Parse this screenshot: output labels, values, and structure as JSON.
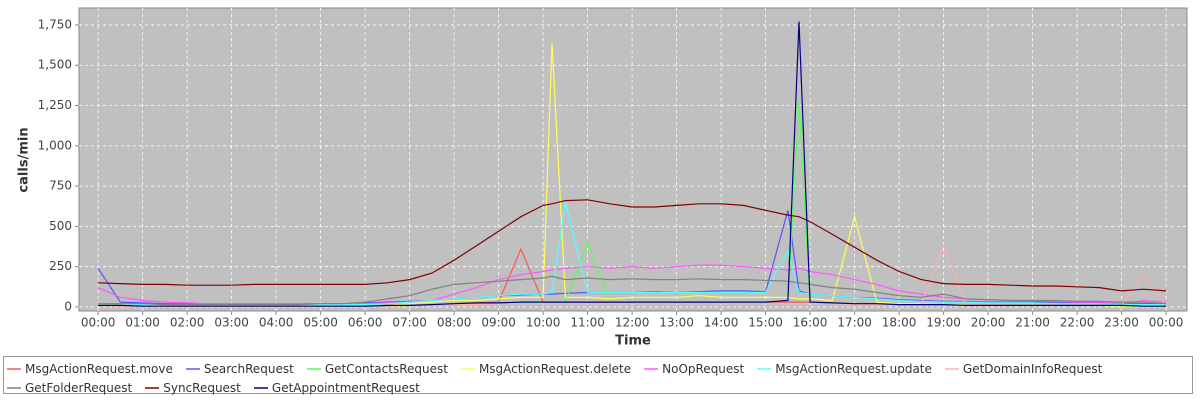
{
  "chart_data": {
    "type": "line",
    "x_label": "Time",
    "y_label": "calls/min",
    "x": [
      0,
      0.5,
      1,
      1.5,
      2,
      2.5,
      3,
      3.5,
      4,
      4.5,
      5,
      5.5,
      6,
      6.5,
      7,
      7.5,
      8,
      8.5,
      9,
      9.5,
      10,
      10.2,
      10.5,
      11,
      11.5,
      12,
      12.5,
      13,
      13.5,
      14,
      14.5,
      15,
      15.5,
      15.75,
      16,
      16.5,
      17,
      17.5,
      18,
      18.5,
      19,
      19.5,
      20,
      20.5,
      21,
      21.5,
      22,
      22.5,
      23,
      23.5,
      24
    ],
    "xlim": [
      -0.43,
      24.47
    ],
    "xticks": [
      {
        "value": 0,
        "label": "00:00"
      },
      {
        "value": 1,
        "label": "01:00"
      },
      {
        "value": 2,
        "label": "02:00"
      },
      {
        "value": 3,
        "label": "03:00"
      },
      {
        "value": 4,
        "label": "04:00"
      },
      {
        "value": 5,
        "label": "05:00"
      },
      {
        "value": 6,
        "label": "06:00"
      },
      {
        "value": 7,
        "label": "07:00"
      },
      {
        "value": 8,
        "label": "08:00"
      },
      {
        "value": 9,
        "label": "09:00"
      },
      {
        "value": 10,
        "label": "10:00"
      },
      {
        "value": 11,
        "label": "11:00"
      },
      {
        "value": 12,
        "label": "12:00"
      },
      {
        "value": 13,
        "label": "13:00"
      },
      {
        "value": 14,
        "label": "14:00"
      },
      {
        "value": 15,
        "label": "15:00"
      },
      {
        "value": 16,
        "label": "16:00"
      },
      {
        "value": 17,
        "label": "17:00"
      },
      {
        "value": 18,
        "label": "18:00"
      },
      {
        "value": 19,
        "label": "19:00"
      },
      {
        "value": 20,
        "label": "20:00"
      },
      {
        "value": 21,
        "label": "21:00"
      },
      {
        "value": 22,
        "label": "22:00"
      },
      {
        "value": 23,
        "label": "23:00"
      },
      {
        "value": 24,
        "label": "00:00"
      }
    ],
    "ylim": [
      -25,
      1855
    ],
    "yticks": [
      0,
      250,
      500,
      750,
      {
        "value": 1000,
        "label": "1,000"
      },
      {
        "value": 1250,
        "label": "1,250"
      },
      {
        "value": 1500,
        "label": "1,500"
      },
      {
        "value": 1750,
        "label": "1,750"
      }
    ],
    "grid": true,
    "series": [
      {
        "name": "MsgActionRequest.move",
        "color": "#ff5555",
        "values": [
          10,
          5,
          5,
          5,
          5,
          5,
          5,
          5,
          5,
          5,
          5,
          5,
          5,
          5,
          10,
          15,
          20,
          25,
          30,
          360,
          30,
          30,
          30,
          30,
          30,
          30,
          30,
          30,
          30,
          30,
          30,
          30,
          30,
          30,
          30,
          25,
          20,
          20,
          15,
          15,
          15,
          10,
          10,
          10,
          10,
          10,
          10,
          10,
          10,
          5,
          5
        ]
      },
      {
        "name": "SearchRequest",
        "color": "#5555ff",
        "values": [
          240,
          30,
          25,
          20,
          20,
          20,
          20,
          20,
          20,
          20,
          20,
          20,
          25,
          30,
          35,
          40,
          50,
          60,
          70,
          75,
          80,
          80,
          85,
          90,
          90,
          90,
          95,
          90,
          95,
          100,
          100,
          95,
          600,
          100,
          80,
          70,
          60,
          55,
          45,
          40,
          35,
          35,
          30,
          30,
          30,
          30,
          25,
          25,
          20,
          20,
          20
        ]
      },
      {
        "name": "GetContactsRequest",
        "color": "#55ff55",
        "values": [
          20,
          10,
          5,
          5,
          5,
          5,
          5,
          5,
          5,
          5,
          5,
          5,
          5,
          5,
          10,
          10,
          15,
          20,
          20,
          25,
          30,
          30,
          30,
          400,
          30,
          30,
          30,
          30,
          30,
          30,
          30,
          30,
          40,
          1280,
          30,
          25,
          20,
          20,
          15,
          15,
          10,
          10,
          10,
          10,
          10,
          10,
          10,
          10,
          5,
          5,
          5
        ]
      },
      {
        "name": "MsgActionRequest.delete",
        "color": "#ffff55",
        "values": [
          10,
          10,
          5,
          5,
          5,
          5,
          5,
          5,
          5,
          5,
          5,
          5,
          5,
          10,
          20,
          30,
          40,
          40,
          50,
          60,
          60,
          1640,
          60,
          60,
          50,
          60,
          60,
          60,
          70,
          60,
          60,
          60,
          60,
          50,
          50,
          40,
          560,
          30,
          20,
          20,
          15,
          15,
          10,
          10,
          10,
          10,
          10,
          10,
          5,
          5,
          5
        ]
      },
      {
        "name": "NoOpRequest",
        "color": "#ff55ff",
        "values": [
          120,
          60,
          40,
          30,
          25,
          20,
          20,
          20,
          20,
          20,
          20,
          20,
          20,
          25,
          30,
          40,
          80,
          120,
          170,
          200,
          220,
          230,
          240,
          250,
          240,
          250,
          240,
          250,
          260,
          260,
          250,
          240,
          230,
          240,
          220,
          200,
          170,
          140,
          100,
          80,
          60,
          50,
          45,
          40,
          40,
          35,
          30,
          30,
          20,
          40,
          30
        ]
      },
      {
        "name": "MsgActionRequest.update",
        "color": "#55ffff",
        "values": [
          20,
          20,
          15,
          15,
          15,
          15,
          15,
          15,
          15,
          15,
          15,
          15,
          15,
          20,
          30,
          40,
          50,
          60,
          70,
          80,
          80,
          90,
          650,
          90,
          90,
          90,
          90,
          90,
          90,
          90,
          90,
          90,
          350,
          90,
          80,
          70,
          60,
          50,
          40,
          35,
          30,
          30,
          25,
          25,
          25,
          20,
          20,
          20,
          15,
          15,
          15
        ]
      },
      {
        "name": "GetDomainInfoRequest",
        "color": "#ffafaf",
        "values": [
          10,
          5,
          5,
          5,
          5,
          5,
          5,
          5,
          5,
          5,
          5,
          5,
          5,
          5,
          10,
          10,
          15,
          15,
          20,
          20,
          20,
          20,
          20,
          20,
          20,
          20,
          20,
          20,
          20,
          20,
          20,
          20,
          20,
          20,
          20,
          20,
          15,
          15,
          15,
          15,
          380,
          15,
          15,
          10,
          10,
          10,
          10,
          10,
          10,
          200,
          10
        ]
      },
      {
        "name": "GetFolderRequest",
        "color": "#808080",
        "values": [
          20,
          20,
          20,
          15,
          15,
          15,
          15,
          15,
          15,
          15,
          20,
          20,
          30,
          50,
          70,
          110,
          140,
          150,
          160,
          170,
          180,
          190,
          170,
          180,
          170,
          175,
          170,
          170,
          175,
          170,
          170,
          165,
          160,
          150,
          140,
          120,
          110,
          90,
          70,
          60,
          80,
          50,
          45,
          40,
          40,
          40,
          35,
          35,
          30,
          30,
          20
        ]
      },
      {
        "name": "SyncRequest",
        "color": "#800000",
        "values": [
          150,
          145,
          140,
          140,
          135,
          135,
          135,
          140,
          140,
          140,
          140,
          140,
          140,
          150,
          170,
          210,
          290,
          380,
          470,
          560,
          630,
          640,
          660,
          665,
          640,
          620,
          620,
          630,
          640,
          640,
          630,
          600,
          570,
          560,
          530,
          450,
          370,
          290,
          220,
          170,
          145,
          140,
          140,
          135,
          130,
          130,
          125,
          120,
          100,
          110,
          100
        ]
      },
      {
        "name": "GetAppointmentRequest",
        "color": "#000080",
        "values": [
          10,
          10,
          5,
          5,
          5,
          5,
          5,
          5,
          5,
          5,
          5,
          5,
          5,
          10,
          10,
          15,
          20,
          25,
          25,
          30,
          30,
          30,
          30,
          30,
          30,
          30,
          30,
          30,
          30,
          30,
          30,
          30,
          40,
          1770,
          30,
          25,
          20,
          20,
          15,
          15,
          15,
          10,
          10,
          10,
          10,
          10,
          10,
          10,
          10,
          5,
          5
        ]
      }
    ]
  }
}
